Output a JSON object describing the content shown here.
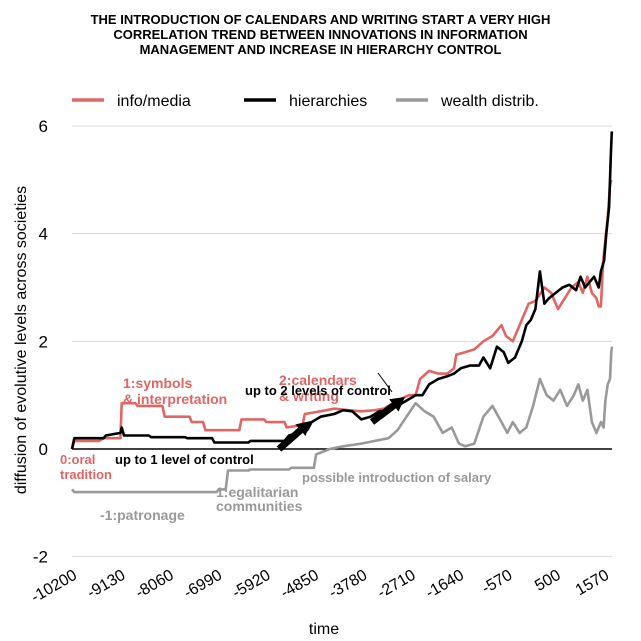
{
  "chart_data": {
    "type": "line",
    "title_lines": [
      "THE INTRODUCTION OF CALENDARS AND WRITING START A VERY HIGH",
      "CORRELATION TREND BETWEEN INNOVATIONS IN INFORMATION",
      "MANAGEMENT AND INCREASE IN HIERARCHY CONTROL"
    ],
    "xlabel": "time",
    "ylabel": "diffusion of evolutive levels across societies",
    "xlim": [
      -10200,
      2000
    ],
    "ylim": [
      -2,
      6
    ],
    "x_ticks": [
      "-10200",
      "-9130",
      "-8060",
      "-6990",
      "-5920",
      "-4850",
      "-3780",
      "-2710",
      "-1640",
      "-570",
      "500",
      "1570"
    ],
    "y_ticks": [
      "-2",
      "0",
      "2",
      "4",
      "6"
    ],
    "legend": {
      "placement": "top",
      "items": [
        "info/media",
        "hierarchies",
        "wealth distrib."
      ]
    },
    "colors": {
      "info": "#e06666",
      "hier": "#000000",
      "wealth": "#999999",
      "axis": "#000000"
    },
    "series": [
      {
        "name": "info/media",
        "points": [
          [
            -10200,
            0
          ],
          [
            -10150,
            0.15
          ],
          [
            -9600,
            0.15
          ],
          [
            -9500,
            0.2
          ],
          [
            -9130,
            0.2
          ],
          [
            -9100,
            0.85
          ],
          [
            -8800,
            0.85
          ],
          [
            -8750,
            0.8
          ],
          [
            -8200,
            0.8
          ],
          [
            -8150,
            0.6
          ],
          [
            -7600,
            0.6
          ],
          [
            -7550,
            0.5
          ],
          [
            -7300,
            0.5
          ],
          [
            -7250,
            0.35
          ],
          [
            -6500,
            0.35
          ],
          [
            -6450,
            0.55
          ],
          [
            -5950,
            0.55
          ],
          [
            -5900,
            0.5
          ],
          [
            -5500,
            0.5
          ],
          [
            -5450,
            0.4
          ],
          [
            -5100,
            0.45
          ],
          [
            -5050,
            0.65
          ],
          [
            -4700,
            0.7
          ],
          [
            -4400,
            0.75
          ],
          [
            -4100,
            0.72
          ],
          [
            -3800,
            0.7
          ],
          [
            -3500,
            0.72
          ],
          [
            -3300,
            0.75
          ],
          [
            -3000,
            0.9
          ],
          [
            -2750,
            1.0
          ],
          [
            -2600,
            1.0
          ],
          [
            -2500,
            1.3
          ],
          [
            -2300,
            1.45
          ],
          [
            -2100,
            1.4
          ],
          [
            -1900,
            1.4
          ],
          [
            -1750,
            1.5
          ],
          [
            -1700,
            1.75
          ],
          [
            -1500,
            1.8
          ],
          [
            -1300,
            1.85
          ],
          [
            -1100,
            2.0
          ],
          [
            -900,
            2.1
          ],
          [
            -700,
            2.3
          ],
          [
            -600,
            2.1
          ],
          [
            -450,
            2.0
          ],
          [
            -300,
            2.3
          ],
          [
            -200,
            2.5
          ],
          [
            -100,
            2.7
          ],
          [
            50,
            2.75
          ],
          [
            250,
            3.0
          ],
          [
            400,
            2.9
          ],
          [
            550,
            2.6
          ],
          [
            700,
            2.8
          ],
          [
            850,
            3.0
          ],
          [
            1000,
            3.1
          ],
          [
            1100,
            2.9
          ],
          [
            1200,
            3.2
          ],
          [
            1300,
            2.9
          ],
          [
            1400,
            2.8
          ],
          [
            1450,
            2.65
          ],
          [
            1500,
            2.65
          ],
          [
            1550,
            3.5
          ],
          [
            1600,
            3.9
          ],
          [
            1650,
            4.3
          ],
          [
            1700,
            4.9
          ],
          [
            1730,
            5.0
          ]
        ]
      },
      {
        "name": "hierarchies",
        "points": [
          [
            -10200,
            0
          ],
          [
            -10150,
            0.2
          ],
          [
            -9500,
            0.2
          ],
          [
            -9450,
            0.25
          ],
          [
            -9130,
            0.3
          ],
          [
            -9100,
            0.4
          ],
          [
            -9050,
            0.25
          ],
          [
            -8500,
            0.25
          ],
          [
            -8450,
            0.22
          ],
          [
            -7700,
            0.22
          ],
          [
            -7650,
            0.2
          ],
          [
            -7100,
            0.2
          ],
          [
            -7050,
            0.12
          ],
          [
            -6300,
            0.12
          ],
          [
            -6250,
            0.15
          ],
          [
            -5500,
            0.15
          ],
          [
            -5400,
            0.25
          ],
          [
            -5000,
            0.35
          ],
          [
            -4900,
            0.5
          ],
          [
            -4700,
            0.6
          ],
          [
            -4400,
            0.65
          ],
          [
            -4200,
            0.72
          ],
          [
            -4000,
            0.7
          ],
          [
            -3800,
            0.55
          ],
          [
            -3600,
            0.6
          ],
          [
            -3400,
            0.7
          ],
          [
            -3200,
            0.72
          ],
          [
            -3000,
            0.8
          ],
          [
            -2800,
            0.9
          ],
          [
            -2600,
            1.0
          ],
          [
            -2450,
            1.0
          ],
          [
            -2300,
            1.2
          ],
          [
            -2100,
            1.3
          ],
          [
            -1900,
            1.35
          ],
          [
            -1750,
            1.4
          ],
          [
            -1600,
            1.5
          ],
          [
            -1400,
            1.55
          ],
          [
            -1200,
            1.55
          ],
          [
            -1100,
            1.7
          ],
          [
            -950,
            1.5
          ],
          [
            -800,
            1.9
          ],
          [
            -650,
            1.8
          ],
          [
            -550,
            1.6
          ],
          [
            -400,
            1.7
          ],
          [
            -250,
            2.0
          ],
          [
            -150,
            2.3
          ],
          [
            -50,
            2.4
          ],
          [
            50,
            2.6
          ],
          [
            150,
            3.3
          ],
          [
            250,
            2.7
          ],
          [
            350,
            2.8
          ],
          [
            500,
            2.9
          ],
          [
            650,
            3.0
          ],
          [
            800,
            3.05
          ],
          [
            950,
            2.95
          ],
          [
            1050,
            3.2
          ],
          [
            1150,
            3.0
          ],
          [
            1250,
            3.1
          ],
          [
            1350,
            3.2
          ],
          [
            1450,
            3.0
          ],
          [
            1500,
            3.3
          ],
          [
            1570,
            3.5
          ],
          [
            1620,
            4.0
          ],
          [
            1680,
            4.5
          ],
          [
            1720,
            5.5
          ],
          [
            1740,
            5.9
          ]
        ]
      },
      {
        "name": "wealth distrib.",
        "points": [
          [
            -10200,
            -0.75
          ],
          [
            -10150,
            -0.8
          ],
          [
            -7000,
            -0.8
          ],
          [
            -6950,
            -0.75
          ],
          [
            -6800,
            -0.75
          ],
          [
            -6750,
            -0.4
          ],
          [
            -6300,
            -0.4
          ],
          [
            -6250,
            -0.38
          ],
          [
            -5400,
            -0.38
          ],
          [
            -5350,
            -0.35
          ],
          [
            -4850,
            -0.35
          ],
          [
            -4800,
            -0.1
          ],
          [
            -4500,
            0.0
          ],
          [
            -4200,
            0.05
          ],
          [
            -3800,
            0.1
          ],
          [
            -3500,
            0.15
          ],
          [
            -3200,
            0.2
          ],
          [
            -3000,
            0.35
          ],
          [
            -2800,
            0.6
          ],
          [
            -2600,
            0.85
          ],
          [
            -2400,
            0.7
          ],
          [
            -2200,
            0.6
          ],
          [
            -2000,
            0.3
          ],
          [
            -1800,
            0.4
          ],
          [
            -1640,
            0.1
          ],
          [
            -1500,
            0.05
          ],
          [
            -1300,
            0.1
          ],
          [
            -1100,
            0.6
          ],
          [
            -900,
            0.8
          ],
          [
            -700,
            0.5
          ],
          [
            -570,
            0.3
          ],
          [
            -450,
            0.5
          ],
          [
            -300,
            0.3
          ],
          [
            -150,
            0.4
          ],
          [
            0,
            0.8
          ],
          [
            150,
            1.3
          ],
          [
            300,
            1.0
          ],
          [
            450,
            0.9
          ],
          [
            600,
            1.1
          ],
          [
            750,
            0.8
          ],
          [
            900,
            1.0
          ],
          [
            1000,
            1.2
          ],
          [
            1100,
            0.9
          ],
          [
            1200,
            1.1
          ],
          [
            1300,
            0.5
          ],
          [
            1400,
            0.3
          ],
          [
            1500,
            0.5
          ],
          [
            1560,
            0.4
          ],
          [
            1600,
            0.9
          ],
          [
            1650,
            1.2
          ],
          [
            1700,
            1.3
          ],
          [
            1730,
            1.8
          ],
          [
            1745,
            1.9
          ]
        ]
      }
    ],
    "annotations": [
      {
        "id": "oral",
        "lines": [
          "0:oral",
          "tradition"
        ],
        "color": "#e06666"
      },
      {
        "id": "symbols",
        "lines": [
          "1:symbols",
          "& interpretation"
        ],
        "color": "#e06666"
      },
      {
        "id": "calendars",
        "lines": [
          "2:calendars",
          "& writing"
        ],
        "color": "#e06666"
      },
      {
        "id": "patronage",
        "lines": [
          "-1:patronage"
        ],
        "color": "#999999"
      },
      {
        "id": "egalitarian",
        "lines": [
          "1:egalitarian",
          "communities"
        ],
        "color": "#999999"
      },
      {
        "id": "salary",
        "lines": [
          "possible introduction of salary"
        ],
        "color": "#999999"
      },
      {
        "id": "control1",
        "lines": [
          "up to 1 level of control"
        ],
        "color": "#000000"
      },
      {
        "id": "control2",
        "lines": [
          "up to 2 levels of control"
        ],
        "color": "#000000"
      }
    ]
  }
}
